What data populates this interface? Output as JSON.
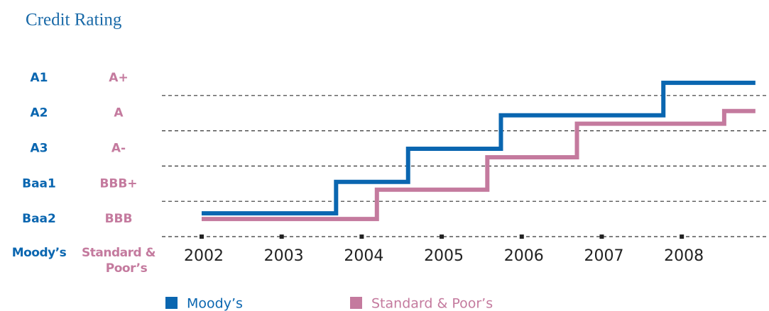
{
  "chart_data": {
    "type": "step",
    "title": "Credit Rating",
    "y_label": "Moody’s",
    "y2_label": "Standard & Poor’s",
    "xlim": [
      2001.45,
      2009.09
    ],
    "xticks": [
      2002,
      2003,
      2004,
      2005,
      2006,
      2007,
      2008
    ],
    "ylim": [
      0,
      5
    ],
    "yticks": [
      {
        "value": 0.5,
        "label": "Baa2"
      },
      {
        "value": 1.5,
        "label": "Baa1"
      },
      {
        "value": 2.5,
        "label": "A3"
      },
      {
        "value": 3.5,
        "label": "A2"
      },
      {
        "value": 4.5,
        "label": "A1"
      }
    ],
    "y2lim": [
      0,
      5
    ],
    "y2ticks": [
      {
        "value": 0.5,
        "label": "BBB"
      },
      {
        "value": 1.5,
        "label": "BBB+"
      },
      {
        "value": 2.5,
        "label": "A-"
      },
      {
        "value": 3.5,
        "label": "A"
      },
      {
        "value": 4.5,
        "label": "A+"
      }
    ],
    "grid": true,
    "series": [
      {
        "name": "Moody’s",
        "color": "#0a66b0",
        "x": [
          2002,
          2003.68,
          2004.58,
          2005.74,
          2007.77,
          2008.92
        ],
        "values": [
          0.66,
          1.55,
          2.49,
          3.44,
          4.36,
          4.36
        ]
      },
      {
        "name": "Standard & Poor’s",
        "color": "#c47a9e",
        "axis": "y2",
        "x": [
          2002,
          2004.19,
          2005.57,
          2006.69,
          2008.53,
          2008.92
        ],
        "values": [
          0.5,
          1.33,
          2.25,
          3.2,
          3.56,
          3.56
        ]
      }
    ]
  }
}
